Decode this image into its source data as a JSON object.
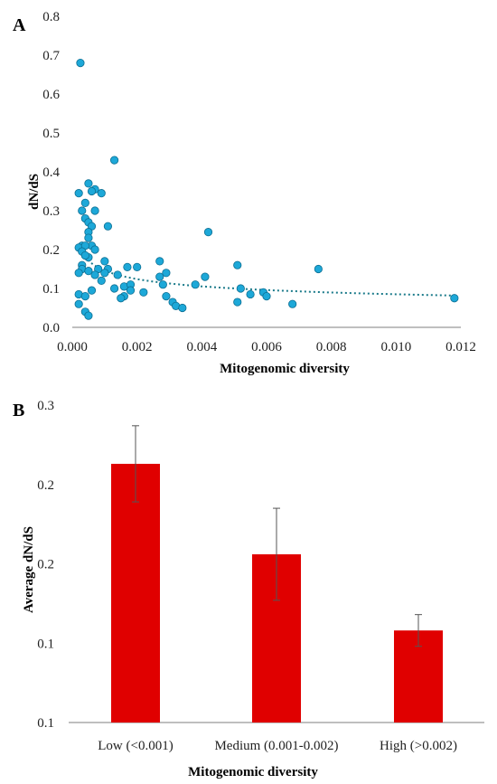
{
  "chart_data": [
    {
      "panel": "A",
      "type": "scatter",
      "xlabel": "Mitogenomic diversity",
      "ylabel": "dN/dS",
      "xlim": [
        0.0,
        0.012
      ],
      "ylim": [
        0.0,
        0.8
      ],
      "x_ticks": [
        "0.000",
        "0.002",
        "0.004",
        "0.006",
        "0.008",
        "0.010",
        "0.012"
      ],
      "y_ticks": [
        "0.0",
        "0.1",
        "0.2",
        "0.3",
        "0.4",
        "0.5",
        "0.6",
        "0.7",
        "0.8"
      ],
      "marker_color": "#1da8d8",
      "trendline": {
        "style": "dotted",
        "model": "power",
        "color": "#1a7a8a"
      },
      "points": [
        [
          0.00025,
          0.68
        ],
        [
          0.0013,
          0.43
        ],
        [
          0.0005,
          0.37
        ],
        [
          0.0002,
          0.345
        ],
        [
          0.0007,
          0.355
        ],
        [
          0.0006,
          0.35
        ],
        [
          0.0009,
          0.345
        ],
        [
          0.0004,
          0.32
        ],
        [
          0.0003,
          0.3
        ],
        [
          0.0007,
          0.3
        ],
        [
          0.0004,
          0.28
        ],
        [
          0.0005,
          0.27
        ],
        [
          0.0006,
          0.26
        ],
        [
          0.0011,
          0.26
        ],
        [
          0.0005,
          0.245
        ],
        [
          0.0042,
          0.245
        ],
        [
          0.0005,
          0.23
        ],
        [
          0.0003,
          0.21
        ],
        [
          0.0002,
          0.205
        ],
        [
          0.0006,
          0.21
        ],
        [
          0.0004,
          0.21
        ],
        [
          0.0003,
          0.195
        ],
        [
          0.0007,
          0.2
        ],
        [
          0.0005,
          0.18
        ],
        [
          0.0004,
          0.185
        ],
        [
          0.0003,
          0.16
        ],
        [
          0.001,
          0.17
        ],
        [
          0.0027,
          0.17
        ],
        [
          0.0017,
          0.155
        ],
        [
          0.002,
          0.155
        ],
        [
          0.0008,
          0.15
        ],
        [
          0.0003,
          0.15
        ],
        [
          0.0005,
          0.145
        ],
        [
          0.0011,
          0.15
        ],
        [
          0.0041,
          0.13
        ],
        [
          0.0076,
          0.15
        ],
        [
          0.0051,
          0.16
        ],
        [
          0.0002,
          0.14
        ],
        [
          0.0007,
          0.135
        ],
        [
          0.001,
          0.14
        ],
        [
          0.0014,
          0.135
        ],
        [
          0.0029,
          0.14
        ],
        [
          0.0027,
          0.13
        ],
        [
          0.0009,
          0.12
        ],
        [
          0.0038,
          0.11
        ],
        [
          0.0016,
          0.105
        ],
        [
          0.0018,
          0.11
        ],
        [
          0.0013,
          0.1
        ],
        [
          0.0028,
          0.11
        ],
        [
          0.0022,
          0.09
        ],
        [
          0.0052,
          0.1
        ],
        [
          0.0059,
          0.09
        ],
        [
          0.0006,
          0.095
        ],
        [
          0.0002,
          0.085
        ],
        [
          0.0004,
          0.08
        ],
        [
          0.0016,
          0.08
        ],
        [
          0.0015,
          0.075
        ],
        [
          0.0018,
          0.095
        ],
        [
          0.0029,
          0.08
        ],
        [
          0.006,
          0.08
        ],
        [
          0.0055,
          0.085
        ],
        [
          0.0031,
          0.065
        ],
        [
          0.0051,
          0.065
        ],
        [
          0.0032,
          0.055
        ],
        [
          0.0034,
          0.05
        ],
        [
          0.0068,
          0.06
        ],
        [
          0.0002,
          0.06
        ],
        [
          0.0004,
          0.04
        ],
        [
          0.0005,
          0.03
        ],
        [
          0.0118,
          0.075
        ]
      ]
    },
    {
      "panel": "B",
      "type": "bar",
      "xlabel": "Mitogenomic diversity",
      "ylabel": "Average dN/dS",
      "y_ticks": [
        "0.1",
        "0.1",
        "0.2",
        "0.2",
        "0.3"
      ],
      "ylim": [
        0.1,
        0.3
      ],
      "bar_color": "#e00000",
      "categories": [
        "Low (<0.001)",
        "Medium (0.001-0.002)",
        "High (>0.002)"
      ],
      "values": [
        0.263,
        0.206,
        0.158
      ],
      "error": [
        0.024,
        0.029,
        0.01
      ]
    }
  ]
}
